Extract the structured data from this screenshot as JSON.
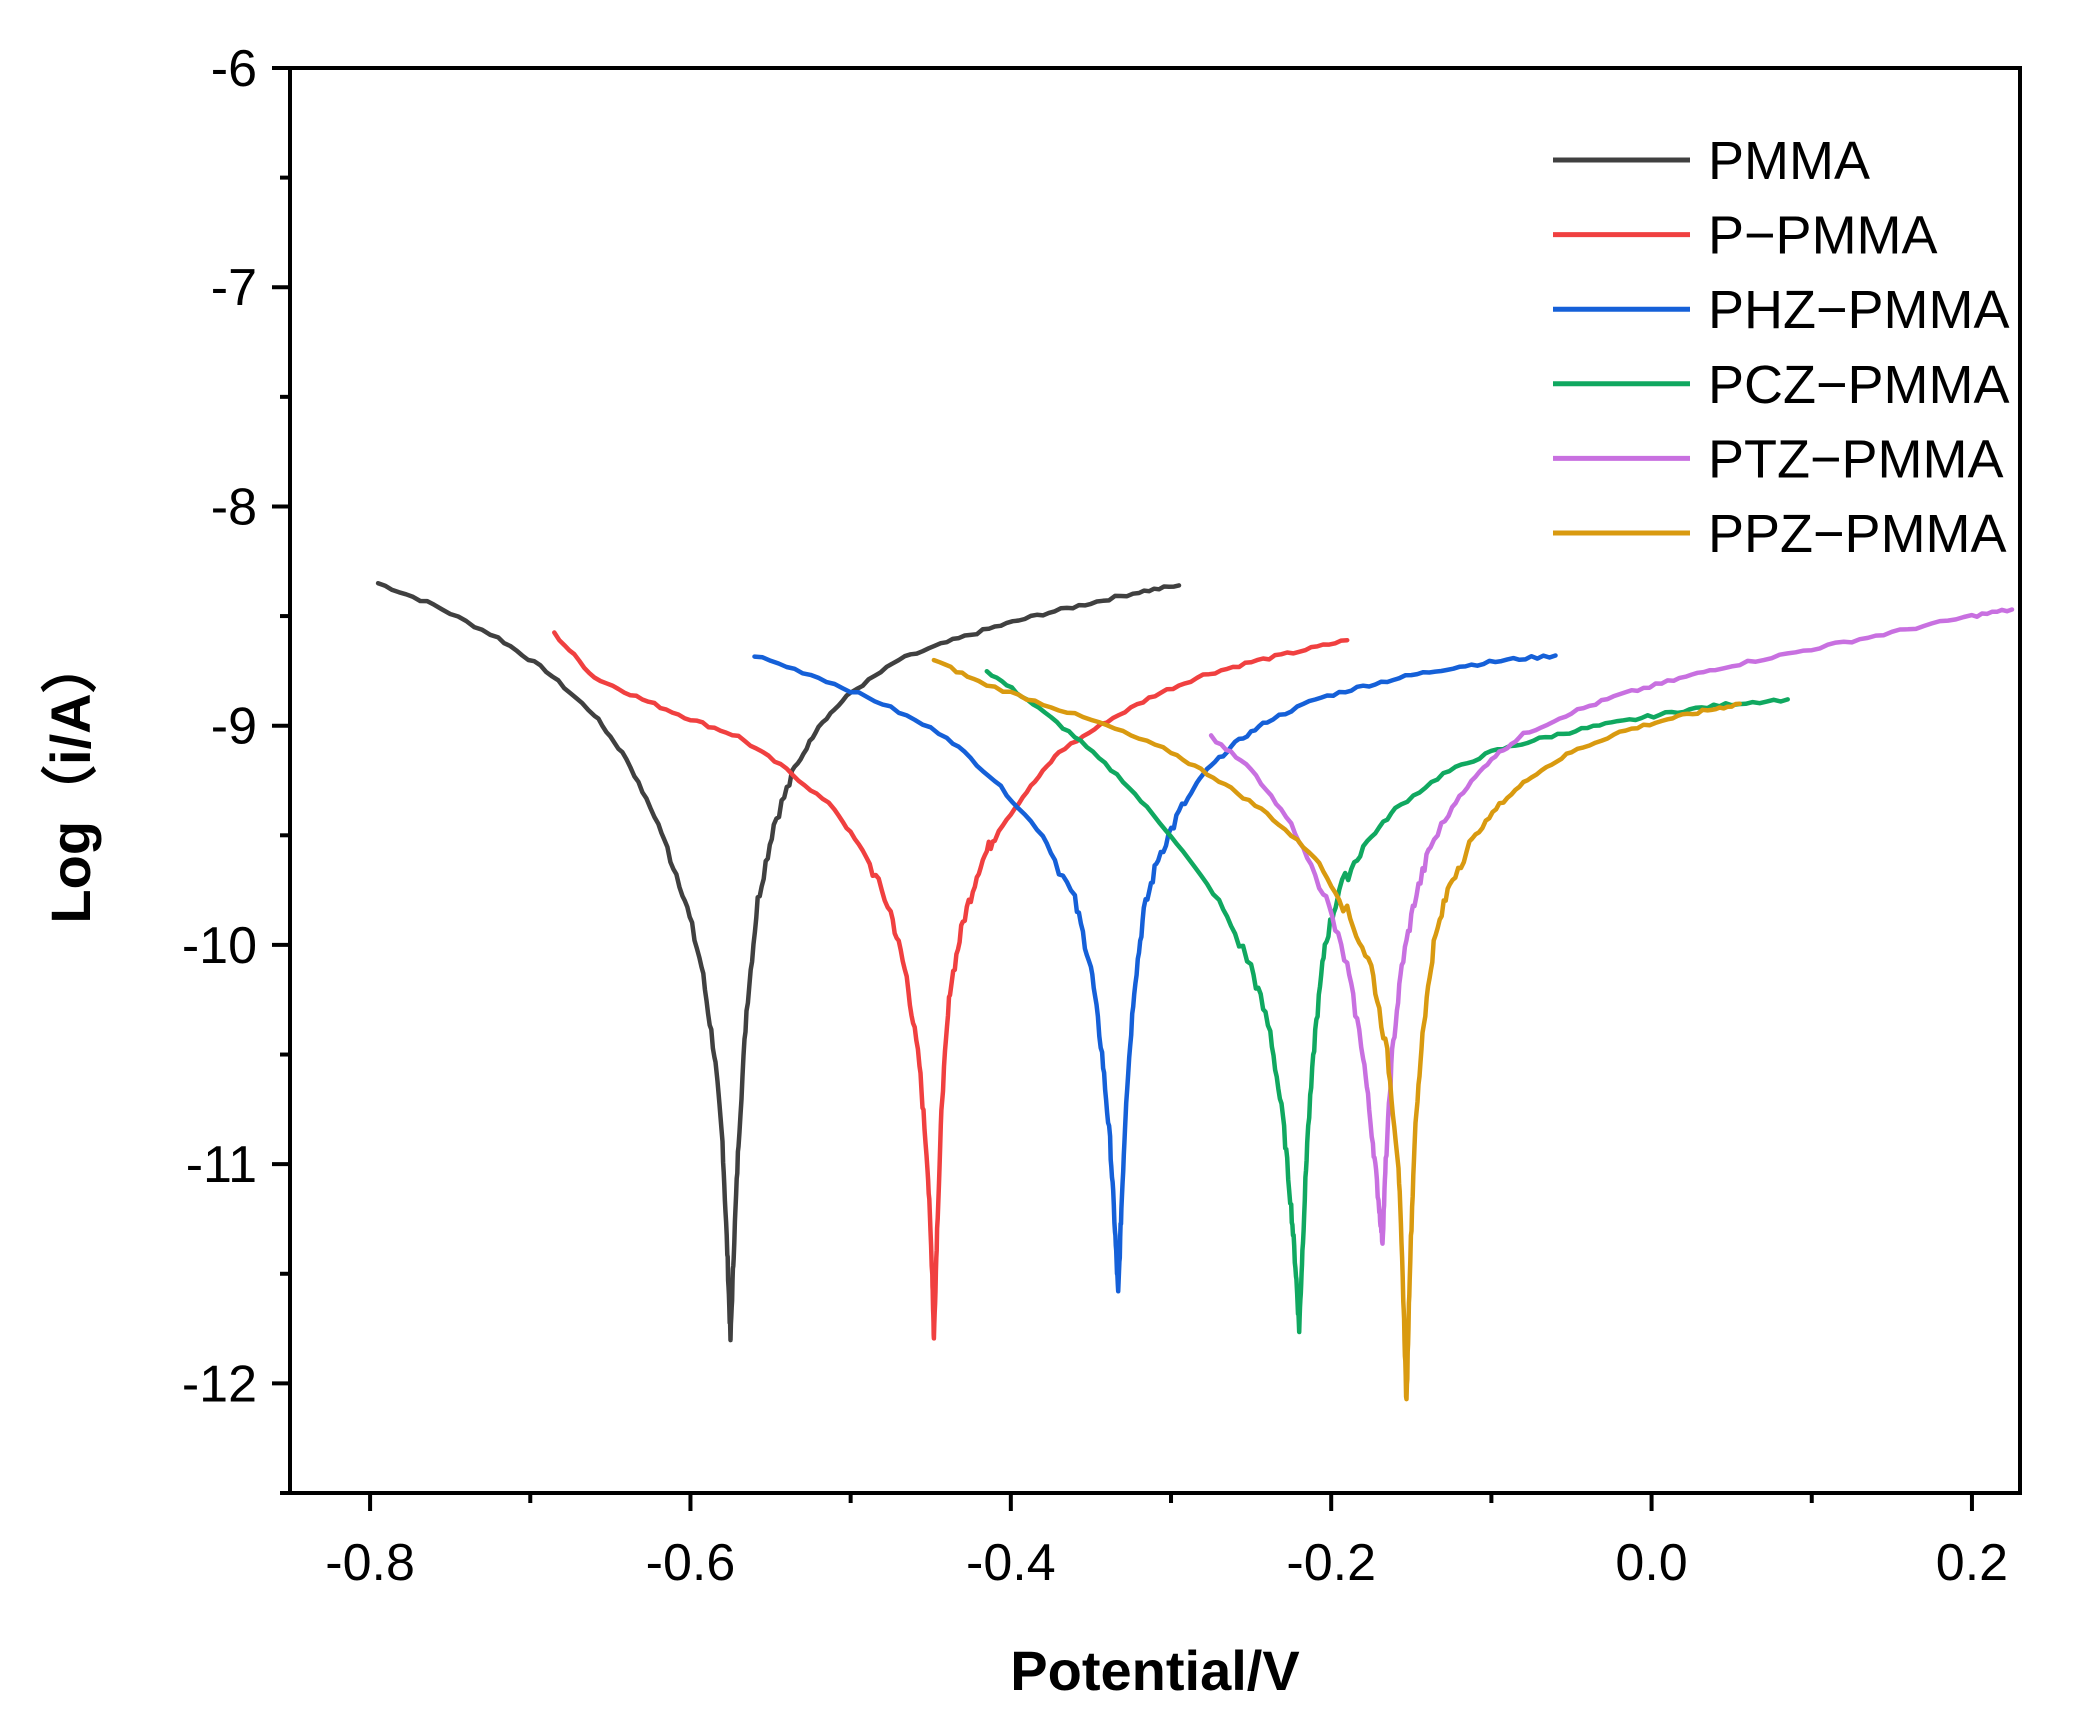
{
  "chart_data": {
    "type": "line",
    "title": "",
    "xlabel": "Potential/V",
    "ylabel": "Log（i/A）",
    "xlim": [
      -0.85,
      0.23
    ],
    "ylim": [
      -12.5,
      -6
    ],
    "x_ticks": [
      {
        "value": -0.8,
        "label": "-0.8"
      },
      {
        "value": -0.6,
        "label": "-0.6"
      },
      {
        "value": -0.4,
        "label": "-0.4"
      },
      {
        "value": -0.2,
        "label": "-0.2"
      },
      {
        "value": 0.0,
        "label": "0.0"
      },
      {
        "value": 0.2,
        "label": "0.2"
      }
    ],
    "x_minor_ticks": [
      -0.7,
      -0.5,
      -0.3,
      -0.1,
      0.1
    ],
    "y_ticks": [
      {
        "value": -6,
        "label": "-6"
      },
      {
        "value": -7,
        "label": "-7"
      },
      {
        "value": -8,
        "label": "-8"
      },
      {
        "value": -9,
        "label": "-9"
      },
      {
        "value": -10,
        "label": "-10"
      },
      {
        "value": -11,
        "label": "-11"
      },
      {
        "value": -12,
        "label": "-12"
      }
    ],
    "y_minor_ticks": [
      -6.5,
      -7.5,
      -8.5,
      -9.5,
      -10.5,
      -11.5,
      -12.5
    ],
    "grid": false,
    "legend_position": "top-right",
    "series": [
      {
        "name": "PMMA",
        "color": "#404040",
        "ecorr": -0.575,
        "imin": -11.8,
        "x": [
          -0.795,
          -0.76,
          -0.72,
          -0.69,
          -0.66,
          -0.64,
          -0.62,
          -0.605,
          -0.593,
          -0.585,
          -0.58,
          -0.577,
          -0.575,
          -0.573,
          -0.57,
          -0.565,
          -0.558,
          -0.548,
          -0.535,
          -0.52,
          -0.5,
          -0.47,
          -0.44,
          -0.41,
          -0.38,
          -0.35,
          -0.32,
          -0.295
        ],
        "y": [
          -8.35,
          -8.45,
          -8.6,
          -8.75,
          -8.95,
          -9.15,
          -9.45,
          -9.75,
          -10.1,
          -10.5,
          -10.9,
          -11.4,
          -11.8,
          -11.4,
          -10.9,
          -10.3,
          -9.8,
          -9.45,
          -9.2,
          -9.0,
          -8.85,
          -8.7,
          -8.62,
          -8.55,
          -8.49,
          -8.44,
          -8.39,
          -8.36
        ]
      },
      {
        "name": "P−PMMA",
        "color": "#F04040",
        "ecorr": -0.448,
        "imin": -11.8,
        "x": [
          -0.685,
          -0.66,
          -0.63,
          -0.6,
          -0.57,
          -0.54,
          -0.51,
          -0.49,
          -0.475,
          -0.465,
          -0.457,
          -0.452,
          -0.449,
          -0.448,
          -0.446,
          -0.443,
          -0.438,
          -0.43,
          -0.42,
          -0.41,
          -0.39,
          -0.37,
          -0.34,
          -0.31,
          -0.28,
          -0.25,
          -0.22,
          -0.19
        ],
        "y": [
          -8.58,
          -8.78,
          -8.88,
          -8.97,
          -9.05,
          -9.2,
          -9.38,
          -9.6,
          -9.85,
          -10.15,
          -10.55,
          -11.0,
          -11.5,
          -11.8,
          -11.3,
          -10.7,
          -10.2,
          -9.9,
          -9.65,
          -9.5,
          -9.3,
          -9.12,
          -8.98,
          -8.86,
          -8.77,
          -8.71,
          -8.66,
          -8.61
        ]
      },
      {
        "name": "PHZ−PMMA",
        "color": "#1560D8",
        "ecorr": -0.333,
        "imin": -11.6,
        "x": [
          -0.56,
          -0.52,
          -0.48,
          -0.44,
          -0.41,
          -0.38,
          -0.36,
          -0.35,
          -0.343,
          -0.338,
          -0.335,
          -0.333,
          -0.331,
          -0.328,
          -0.323,
          -0.317,
          -0.308,
          -0.295,
          -0.28,
          -0.26,
          -0.24,
          -0.21,
          -0.18,
          -0.15,
          -0.12,
          -0.09,
          -0.06
        ],
        "y": [
          -8.68,
          -8.78,
          -8.9,
          -9.05,
          -9.25,
          -9.5,
          -9.8,
          -10.1,
          -10.5,
          -10.9,
          -11.3,
          -11.6,
          -11.2,
          -10.7,
          -10.2,
          -9.85,
          -9.6,
          -9.4,
          -9.22,
          -9.08,
          -8.98,
          -8.88,
          -8.82,
          -8.77,
          -8.73,
          -8.7,
          -8.68
        ]
      },
      {
        "name": "PCZ−PMMA",
        "color": "#10A860",
        "ecorr": -0.22,
        "imin": -11.75,
        "x": [
          -0.415,
          -0.39,
          -0.36,
          -0.33,
          -0.3,
          -0.27,
          -0.25,
          -0.238,
          -0.23,
          -0.225,
          -0.222,
          -0.22,
          -0.218,
          -0.215,
          -0.21,
          -0.204,
          -0.195,
          -0.18,
          -0.16,
          -0.13,
          -0.1,
          -0.07,
          -0.04,
          -0.01,
          0.02,
          0.05,
          0.085
        ],
        "y": [
          -8.75,
          -8.88,
          -9.05,
          -9.25,
          -9.5,
          -9.8,
          -10.1,
          -10.4,
          -10.8,
          -11.2,
          -11.5,
          -11.75,
          -11.4,
          -10.9,
          -10.4,
          -10.0,
          -9.75,
          -9.55,
          -9.38,
          -9.22,
          -9.12,
          -9.06,
          -9.01,
          -8.97,
          -8.93,
          -8.9,
          -8.88
        ]
      },
      {
        "name": "PTZ−PMMA",
        "color": "#C870E0",
        "ecorr": -0.168,
        "imin": -11.35,
        "x": [
          -0.275,
          -0.25,
          -0.225,
          -0.205,
          -0.19,
          -0.18,
          -0.174,
          -0.17,
          -0.168,
          -0.166,
          -0.162,
          -0.156,
          -0.148,
          -0.138,
          -0.12,
          -0.1,
          -0.08,
          -0.05,
          -0.02,
          0.01,
          0.04,
          0.08,
          0.12,
          0.16,
          0.2,
          0.225
        ],
        "y": [
          -9.05,
          -9.2,
          -9.45,
          -9.75,
          -10.1,
          -10.5,
          -10.9,
          -11.2,
          -11.35,
          -11.0,
          -10.5,
          -10.1,
          -9.8,
          -9.55,
          -9.32,
          -9.15,
          -9.04,
          -8.94,
          -8.86,
          -8.8,
          -8.74,
          -8.68,
          -8.62,
          -8.56,
          -8.5,
          -8.47
        ]
      },
      {
        "name": "PPZ−PMMA",
        "color": "#D99A10",
        "ecorr": -0.153,
        "imin": -12.1,
        "x": [
          -0.448,
          -0.42,
          -0.38,
          -0.34,
          -0.3,
          -0.27,
          -0.24,
          -0.21,
          -0.19,
          -0.175,
          -0.165,
          -0.158,
          -0.155,
          -0.153,
          -0.151,
          -0.148,
          -0.143,
          -0.136,
          -0.126,
          -0.112,
          -0.095,
          -0.075,
          -0.05,
          -0.02,
          0.01,
          0.035,
          0.055
        ],
        "y": [
          -8.7,
          -8.8,
          -8.9,
          -9.0,
          -9.12,
          -9.25,
          -9.4,
          -9.6,
          -9.85,
          -10.1,
          -10.5,
          -11.0,
          -11.6,
          -12.1,
          -11.5,
          -10.9,
          -10.4,
          -10.0,
          -9.72,
          -9.52,
          -9.36,
          -9.23,
          -9.12,
          -9.03,
          -8.97,
          -8.93,
          -8.9
        ]
      }
    ]
  }
}
